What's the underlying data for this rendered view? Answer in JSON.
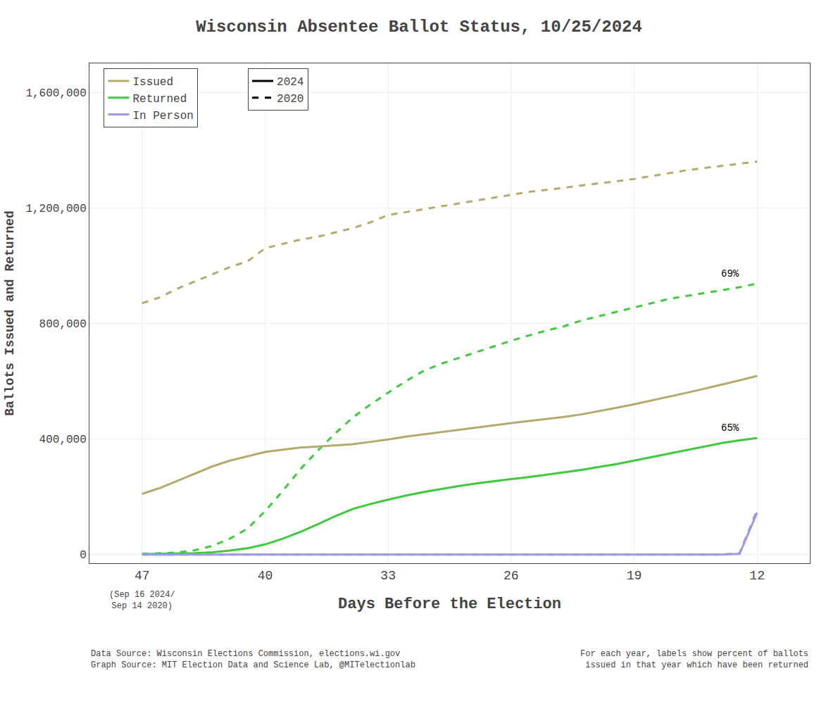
{
  "chart_data": {
    "type": "line",
    "title": "Wisconsin Absentee Ballot Status, 10/25/2024",
    "x_label": "Days Before the Election",
    "y_label": "Ballots Issued and Returned",
    "footnote_left": "Data Source: Wisconsin Elections Commission, elections.wi.gov\nGraph Source: MIT Election Data and Science Lab, @MITelectionlab",
    "footnote_right": "For each year, labels show percent of ballots\nissued in that year which have been returned",
    "x_note": {
      "text": "(Sep 16 2024/\nSep 14 2020)",
      "x": 47
    },
    "annotations": [
      {
        "text": "69%",
        "x": 12,
        "y": 938000
      },
      {
        "text": "65%",
        "x": 12,
        "y": 403000
      }
    ],
    "xlim": [
      50,
      9
    ],
    "xticks": [
      47,
      40,
      33,
      26,
      19,
      12
    ],
    "ylim": [
      -30000,
      1700000
    ],
    "yticks": [
      0,
      {
        "value": 400000,
        "label": "400,000"
      },
      {
        "value": 800000,
        "label": "800,000"
      },
      {
        "value": 1200000,
        "label": "1,200,000"
      },
      {
        "value": 1600000,
        "label": "1,600,000"
      }
    ],
    "grid": true,
    "legend": "upper left",
    "year_legend": [
      {
        "name": "2024",
        "line_style": "solid"
      },
      {
        "name": "2020",
        "line_style": "dashed"
      }
    ],
    "series": [
      {
        "name": "Issued",
        "color": "#b5aa6e",
        "line_style": "dashed",
        "x": [
          47,
          46,
          45,
          44,
          43,
          42,
          41,
          40,
          39,
          38,
          37,
          36,
          35,
          34,
          33,
          32,
          31,
          30,
          29,
          28,
          27,
          26,
          25,
          24,
          23,
          22,
          21,
          20,
          19,
          18,
          17,
          16,
          15,
          14,
          13,
          12
        ],
        "values": [
          870000,
          890000,
          920000,
          945000,
          970000,
          995000,
          1015000,
          1060000,
          1075000,
          1090000,
          1100000,
          1115000,
          1130000,
          1150000,
          1175000,
          1185000,
          1195000,
          1205000,
          1215000,
          1225000,
          1235000,
          1245000,
          1255000,
          1262000,
          1270000,
          1278000,
          1285000,
          1292000,
          1300000,
          1310000,
          1320000,
          1330000,
          1338000,
          1345000,
          1352000,
          1360000
        ]
      },
      {
        "name": "Returned",
        "color": "#3dca3d",
        "line_style": "dashed",
        "x": [
          47,
          46,
          45,
          44,
          43,
          42,
          41,
          40,
          39,
          38,
          37,
          36,
          35,
          34,
          33,
          32,
          31,
          30,
          29,
          28,
          27,
          26,
          25,
          24,
          23,
          22,
          21,
          20,
          19,
          18,
          17,
          16,
          15,
          14,
          13,
          12
        ],
        "values": [
          2000,
          4000,
          7000,
          15000,
          30000,
          55000,
          90000,
          150000,
          220000,
          295000,
          360000,
          420000,
          475000,
          520000,
          560000,
          600000,
          635000,
          660000,
          680000,
          700000,
          720000,
          740000,
          758000,
          775000,
          790000,
          810000,
          825000,
          840000,
          855000,
          870000,
          885000,
          895000,
          905000,
          915000,
          925000,
          938000
        ]
      },
      {
        "name": "In Person",
        "color": "#9b9bdf",
        "line_style": "dashed",
        "x": [
          47,
          46,
          45,
          44,
          43,
          42,
          41,
          40,
          39,
          38,
          37,
          36,
          35,
          34,
          33,
          32,
          31,
          30,
          29,
          28,
          27,
          26,
          25,
          24,
          23,
          22,
          21,
          20,
          19,
          18,
          17,
          16,
          15,
          14,
          13,
          12
        ],
        "values": [
          0,
          0,
          0,
          0,
          0,
          0,
          0,
          0,
          0,
          0,
          0,
          0,
          0,
          0,
          0,
          0,
          0,
          0,
          0,
          0,
          0,
          0,
          0,
          0,
          0,
          0,
          0,
          0,
          0,
          0,
          0,
          0,
          0,
          0,
          5000,
          155000
        ]
      },
      {
        "name": "Issued",
        "color": "#b5aa6e",
        "line_style": "solid",
        "x": [
          47,
          46,
          45,
          44,
          43,
          42,
          41,
          40,
          39,
          38,
          37,
          36,
          35,
          34,
          33,
          32,
          31,
          30,
          29,
          28,
          27,
          26,
          25,
          24,
          23,
          22,
          21,
          20,
          19,
          18,
          17,
          16,
          15,
          14,
          13,
          12
        ],
        "values": [
          210000,
          230000,
          255000,
          280000,
          305000,
          325000,
          340000,
          355000,
          363000,
          370000,
          374000,
          378000,
          382000,
          390000,
          398000,
          408000,
          416000,
          424000,
          432000,
          440000,
          448000,
          455000,
          462000,
          469000,
          476000,
          485000,
          496000,
          508000,
          520000,
          533000,
          547000,
          560000,
          574000,
          588000,
          603000,
          618000
        ]
      },
      {
        "name": "Returned",
        "color": "#3dca3d",
        "line_style": "solid",
        "x": [
          47,
          46,
          45,
          44,
          43,
          42,
          41,
          40,
          39,
          38,
          37,
          36,
          35,
          34,
          33,
          32,
          31,
          30,
          29,
          28,
          27,
          26,
          25,
          24,
          23,
          22,
          21,
          20,
          19,
          18,
          17,
          16,
          15,
          14,
          13,
          12
        ],
        "values": [
          1000,
          2000,
          3000,
          5000,
          8000,
          14000,
          22000,
          35000,
          55000,
          78000,
          105000,
          133000,
          158000,
          175000,
          190000,
          204000,
          216000,
          227000,
          237000,
          246000,
          254000,
          261000,
          268000,
          276000,
          284000,
          293000,
          303000,
          313000,
          325000,
          337000,
          350000,
          362000,
          374000,
          386000,
          395000,
          403000
        ]
      },
      {
        "name": "In Person",
        "color": "#9b9bdf",
        "line_style": "solid",
        "x": [
          47,
          46,
          45,
          44,
          43,
          42,
          41,
          40,
          39,
          38,
          37,
          36,
          35,
          34,
          33,
          32,
          31,
          30,
          29,
          28,
          27,
          26,
          25,
          24,
          23,
          22,
          21,
          20,
          19,
          18,
          17,
          16,
          15,
          14,
          13,
          12
        ],
        "values": [
          0,
          0,
          0,
          0,
          0,
          0,
          0,
          0,
          0,
          0,
          0,
          0,
          0,
          0,
          0,
          0,
          0,
          0,
          0,
          0,
          0,
          0,
          0,
          0,
          0,
          0,
          0,
          0,
          0,
          0,
          0,
          0,
          0,
          0,
          2000,
          145000
        ]
      }
    ]
  }
}
